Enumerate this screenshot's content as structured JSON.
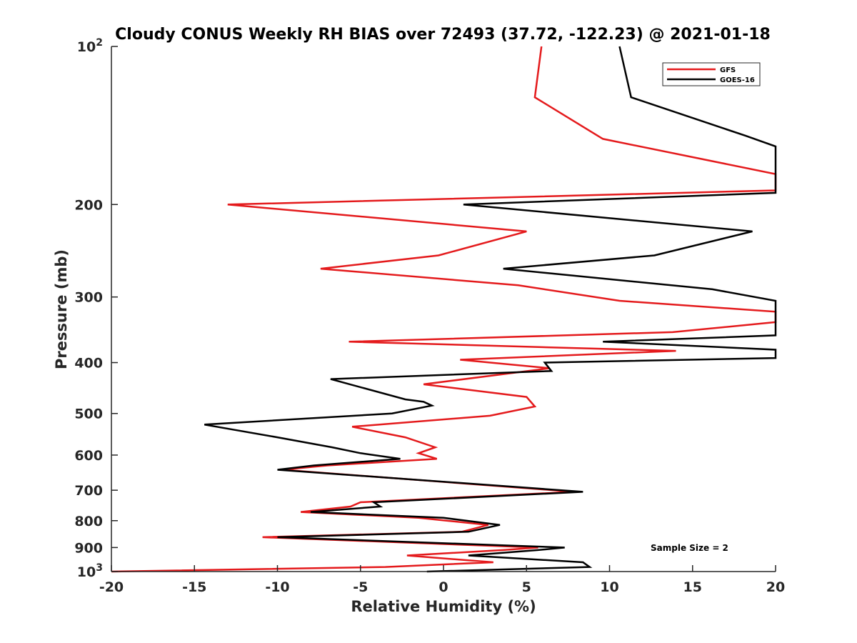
{
  "chart_data": {
    "type": "line",
    "title": "Cloudy CONUS Weekly RH BIAS over 72493 (37.72, -122.23) @ 2021-01-18",
    "xlabel": "Relative Humidity (%)",
    "ylabel": "Pressure (mb)",
    "xlim": [
      -20,
      20
    ],
    "ylim": [
      100,
      1000
    ],
    "y_scale": "log",
    "y_reversed": true,
    "grid": false,
    "legend_position": "top-right",
    "x_ticks": [
      "-20",
      "-15",
      "-10",
      "-5",
      "0",
      "5",
      "10",
      "15",
      "20"
    ],
    "x_tick_values": [
      -20,
      -15,
      -10,
      -5,
      0,
      5,
      10,
      15,
      20
    ],
    "y_ticks": [
      {
        "value": 100,
        "label": "10",
        "sup": "2"
      },
      {
        "value": 200,
        "label": "200",
        "sup": ""
      },
      {
        "value": 300,
        "label": "300",
        "sup": ""
      },
      {
        "value": 400,
        "label": "400",
        "sup": ""
      },
      {
        "value": 500,
        "label": "500",
        "sup": ""
      },
      {
        "value": 600,
        "label": "600",
        "sup": ""
      },
      {
        "value": 700,
        "label": "700",
        "sup": ""
      },
      {
        "value": 800,
        "label": "800",
        "sup": ""
      },
      {
        "value": 900,
        "label": "900",
        "sup": ""
      },
      {
        "value": 1000,
        "label": "10",
        "sup": "3"
      }
    ],
    "annotation": "Sample Size = 2",
    "series": [
      {
        "name": "GFS",
        "color": "#e41a1c",
        "points": [
          [
            5.9,
            100
          ],
          [
            5.5,
            125
          ],
          [
            9.6,
            150
          ],
          [
            20.0,
            175
          ],
          [
            20.0,
            188
          ],
          [
            -13.0,
            200
          ],
          [
            5.0,
            225
          ],
          [
            -0.3,
            250
          ],
          [
            -7.4,
            265
          ],
          [
            4.5,
            285
          ],
          [
            10.6,
            305
          ],
          [
            20.0,
            320
          ],
          [
            20.0,
            335
          ],
          [
            13.8,
            350
          ],
          [
            -5.7,
            365
          ],
          [
            14.0,
            380
          ],
          [
            1.0,
            395
          ],
          [
            6.4,
            410
          ],
          [
            -1.2,
            440
          ],
          [
            5.0,
            465
          ],
          [
            5.5,
            485
          ],
          [
            2.8,
            505
          ],
          [
            -5.5,
            530
          ],
          [
            -2.3,
            555
          ],
          [
            -0.5,
            580
          ],
          [
            -1.5,
            595
          ],
          [
            -0.4,
            610
          ],
          [
            -7.0,
            628
          ],
          [
            -9.7,
            640
          ],
          [
            7.9,
            705
          ],
          [
            -5.0,
            738
          ],
          [
            -5.6,
            752
          ],
          [
            -8.6,
            770
          ],
          [
            -1.5,
            790
          ],
          [
            2.7,
            815
          ],
          [
            1.1,
            840
          ],
          [
            -10.9,
            860
          ],
          [
            5.7,
            900
          ],
          [
            3.6,
            910
          ],
          [
            -2.2,
            932
          ],
          [
            3.0,
            960
          ],
          [
            -3.5,
            980
          ],
          [
            -20.0,
            1000
          ]
        ]
      },
      {
        "name": "GOES-16",
        "color": "#000000",
        "points": [
          [
            10.6,
            100
          ],
          [
            11.3,
            125
          ],
          [
            18.2,
            148
          ],
          [
            20.0,
            155
          ],
          [
            20.0,
            190
          ],
          [
            1.2,
            200
          ],
          [
            18.6,
            225
          ],
          [
            12.7,
            250
          ],
          [
            3.6,
            265
          ],
          [
            16.2,
            290
          ],
          [
            20.0,
            305
          ],
          [
            20.0,
            335
          ],
          [
            20.0,
            355
          ],
          [
            9.6,
            365
          ],
          [
            20.0,
            378
          ],
          [
            20.0,
            392
          ],
          [
            6.1,
            400
          ],
          [
            6.5,
            415
          ],
          [
            -6.8,
            430
          ],
          [
            -2.3,
            470
          ],
          [
            -1.2,
            475
          ],
          [
            -0.7,
            483
          ],
          [
            -3.1,
            500
          ],
          [
            -14.4,
            525
          ],
          [
            -10.0,
            555
          ],
          [
            -6.7,
            580
          ],
          [
            -5.0,
            595
          ],
          [
            -2.6,
            610
          ],
          [
            -7.8,
            628
          ],
          [
            -10.0,
            640
          ],
          [
            8.4,
            705
          ],
          [
            -4.2,
            738
          ],
          [
            -3.8,
            752
          ],
          [
            -8.0,
            770
          ],
          [
            0.0,
            790
          ],
          [
            3.4,
            815
          ],
          [
            1.5,
            840
          ],
          [
            -10.0,
            860
          ],
          [
            7.3,
            900
          ],
          [
            5.7,
            910
          ],
          [
            1.5,
            932
          ],
          [
            8.4,
            960
          ],
          [
            8.8,
            980
          ],
          [
            -1.0,
            1000
          ]
        ]
      }
    ]
  }
}
